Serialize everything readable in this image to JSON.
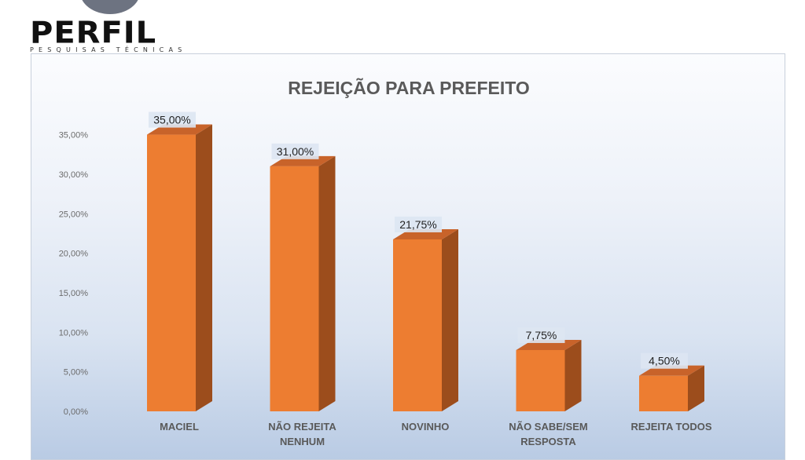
{
  "logo": {
    "name": "PERFIL",
    "subtitle": "PESQUISAS TÉCNICAS"
  },
  "chart_data": {
    "type": "bar",
    "title": "REJEIÇÃO PARA PREFEITO",
    "categories": [
      [
        "MACIEL"
      ],
      [
        "NÃO REJEITA",
        "NENHUM"
      ],
      [
        "NOVINHO"
      ],
      [
        "NÃO SABE/SEM",
        "RESPOSTA"
      ],
      [
        "REJEITA TODOS"
      ]
    ],
    "values": [
      35.0,
      31.0,
      21.75,
      7.75,
      4.5
    ],
    "data_labels": [
      "35,00%",
      "31,00%",
      "21,75%",
      "7,75%",
      "4,50%"
    ],
    "y_ticks": [
      "0,00%",
      "5,00%",
      "10,00%",
      "15,00%",
      "20,00%",
      "25,00%",
      "30,00%",
      "35,00%"
    ],
    "ylim": [
      0,
      35
    ],
    "grid": false,
    "style_3d": true,
    "colors": {
      "bar_front": "#ed7d31",
      "bar_side": "#9c4d1c",
      "bar_top": "#c8632a",
      "label_box": "#dde6f2",
      "tick_text": "#6b6b6b",
      "category_text": "#595959"
    }
  }
}
